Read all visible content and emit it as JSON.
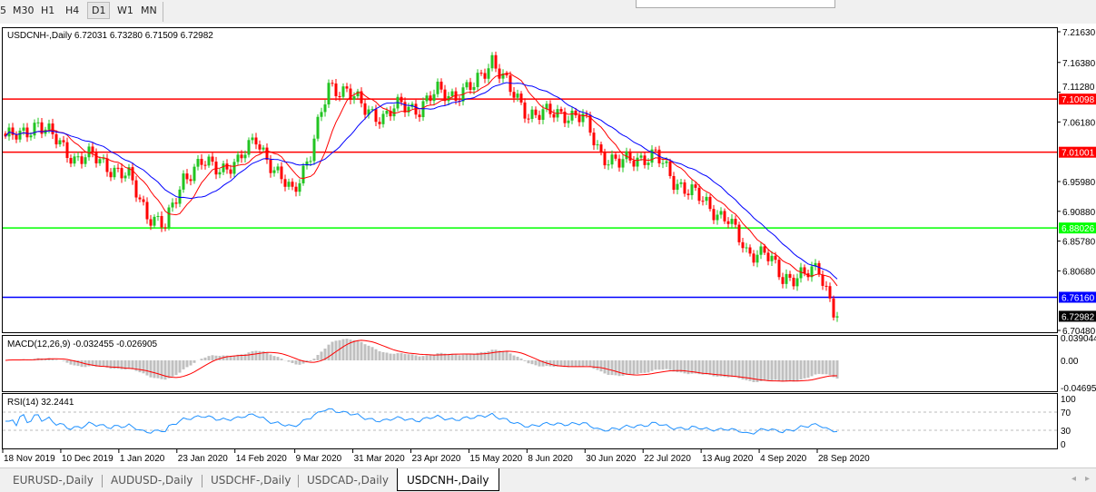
{
  "timeframes": [
    "5",
    "M30",
    "H1",
    "H4",
    "D1",
    "W1",
    "MN"
  ],
  "active_timeframe": "D1",
  "chart": {
    "title": "USDCNH-,Daily  6.72031 6.73280 6.71509 6.72982",
    "price_axis": [
      "7.21630",
      "7.16380",
      "7.11280",
      "7.06180",
      "6.95980",
      "6.90880",
      "6.85780",
      "6.80680",
      "6.70480"
    ],
    "price_range": [
      6.7048,
      7.2163
    ],
    "levels": [
      {
        "price": 7.10098,
        "label": "7.10098",
        "color": "#ff0000"
      },
      {
        "price": 7.01001,
        "label": "7.01001",
        "color": "#ff0000"
      },
      {
        "price": 6.88026,
        "label": "6.88026",
        "color": "#00ff00"
      },
      {
        "price": 6.7616,
        "label": "6.76160",
        "color": "#0000ff"
      }
    ],
    "current_price": "6.72982",
    "weekly_closes": [
      7.037,
      7.037,
      7.061,
      7.03,
      6.999,
      7.003,
      6.983,
      6.967,
      6.905,
      6.882,
      6.967,
      6.991,
      6.983,
      6.991,
      7.037,
      6.975,
      6.944,
      7.006,
      7.123,
      7.115,
      7.084,
      7.069,
      7.092,
      7.084,
      7.115,
      7.107,
      7.123,
      7.17,
      7.115,
      7.076,
      7.076,
      7.076,
      7.069,
      7.006,
      6.991,
      6.999,
      7.006,
      6.96,
      6.944,
      6.913,
      6.897,
      6.835,
      6.843,
      6.789,
      6.804,
      6.804,
      6.729
    ],
    "colors": {
      "up": "#22c422",
      "down": "#ff0000",
      "ma_fast": "#ff0000",
      "ma_slow": "#0000ff"
    }
  },
  "macd": {
    "label": "MACD(12,26,9) -0.032455 -0.026905",
    "axis": [
      "0.039044",
      "0.00",
      "-0.046959"
    ]
  },
  "rsi": {
    "label": "RSI(14) 32.2441",
    "axis": [
      "100",
      "70",
      "30",
      "0"
    ]
  },
  "dates": [
    "18 Nov 2019",
    "10 Dec 2019",
    "1 Jan 2020",
    "23 Jan 2020",
    "14 Feb 2020",
    "9 Mar 2020",
    "31 Mar 2020",
    "23 Apr 2020",
    "15 May 2020",
    "8 Jun 2020",
    "30 Jun 2020",
    "22 Jul 2020",
    "13 Aug 2020",
    "4 Sep 2020",
    "28 Sep 2020"
  ],
  "tabs": [
    "EURUSD-,Daily",
    "AUDUSD-,Daily",
    "USDCHF-,Daily",
    "USDCAD-,Daily",
    "USDCNH-,Daily"
  ],
  "active_tab": "USDCNH-,Daily"
}
